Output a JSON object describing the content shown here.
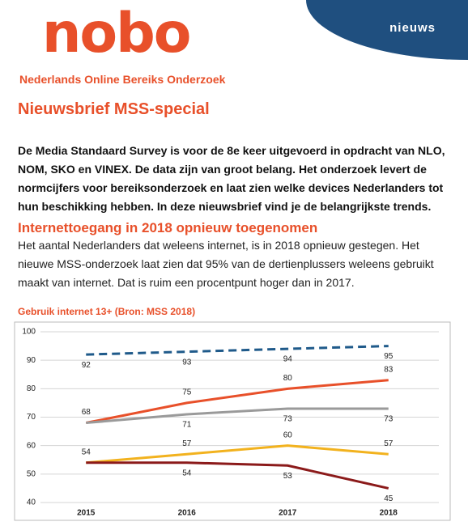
{
  "header": {
    "logo": "nobo",
    "tagline": "Nederlands Online Bereiks Onderzoek",
    "badge": "nieuws"
  },
  "title": "Nieuwsbrief MSS-special",
  "intro": "De Media Standaard Survey is voor de 8e keer uitgevoerd in opdracht van NLO, NOM, SKO en VINEX. De data zijn van groot belang. Het onderzoek levert de normcijfers voor bereiksonderzoek en laat zien welke devices Nederlanders tot hun beschikking hebben. In deze nieuwsbrief vind je de belangrijkste trends.",
  "section": {
    "heading": "Internettoegang in 2018 opnieuw toegenomen",
    "text": "Het aantal Nederlanders dat weleens internet, is in 2018 opnieuw gestegen. Het nieuwe MSS-onderzoek laat zien dat 95% van de dertienplussers weleens gebruikt maakt van internet. Dat is ruim een procentpunt hoger dan in 2017."
  },
  "chart_data": {
    "type": "line",
    "title": "Gebruik internet 13+ (Bron: MSS 2018)",
    "categories": [
      "2015",
      "2016",
      "2017",
      "2018"
    ],
    "ylim": [
      40,
      100
    ],
    "yticks": [
      40,
      50,
      60,
      70,
      80,
      90,
      100
    ],
    "grid": true,
    "series": [
      {
        "color": "#1f5a8a",
        "dashed": true,
        "values": [
          92,
          93,
          94,
          95
        ]
      },
      {
        "color": "#e8502a",
        "values": [
          68,
          75,
          80,
          83
        ]
      },
      {
        "color": "#9a9a9a",
        "values": [
          68,
          71,
          73,
          73
        ],
        "value_labels": [
          null,
          "71",
          "73",
          "73"
        ]
      },
      {
        "color": "#f2b21e",
        "values": [
          54,
          57,
          60,
          57
        ]
      },
      {
        "color": "#8b1a1a",
        "values": [
          54,
          54,
          53,
          45
        ],
        "value_labels": [
          null,
          "54",
          "53",
          "45"
        ]
      }
    ]
  }
}
